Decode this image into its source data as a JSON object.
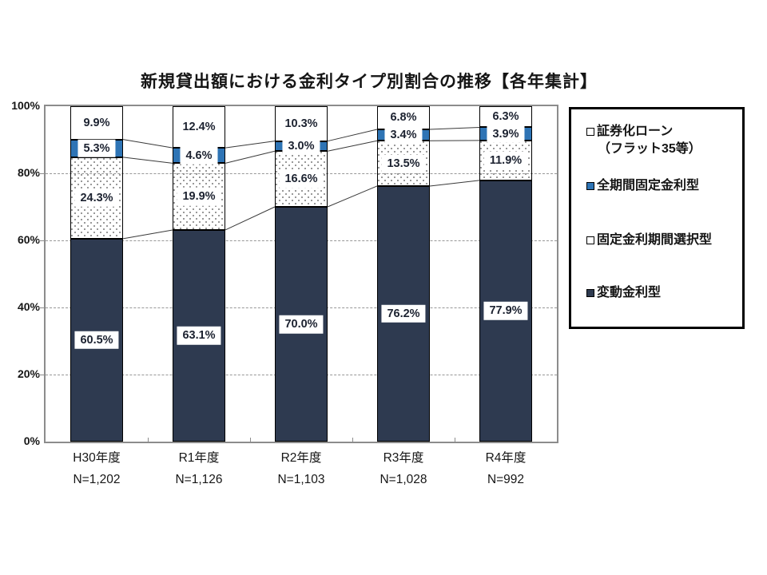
{
  "title": "新規貸出額における金利タイプ別割合の推移【各年集計】",
  "colors": {
    "navy": "#2E3A50",
    "blue": "#2E74B5",
    "white": "#FFFFFF",
    "plot_border": "#8C8C8C",
    "gridline": "#979797",
    "connector": "#3a3a3a",
    "dot_pattern": "#7F7F7F"
  },
  "legend": {
    "items": [
      {
        "name": "securitized-loan",
        "swatch": "white",
        "label_lines": [
          "証券化ローン",
          "（フラット35等）"
        ]
      },
      {
        "name": "full-term-fixed",
        "swatch": "blue",
        "label_lines": [
          "全期間固定金利型"
        ]
      },
      {
        "name": "fixed-period-select",
        "swatch": "white",
        "label_lines": [
          "固定金利期間選択型"
        ]
      },
      {
        "name": "variable-rate",
        "swatch": "navy",
        "label_lines": [
          "変動金利型"
        ]
      }
    ]
  },
  "chart_data": {
    "type": "bar",
    "subtype": "stacked-100-percent-column",
    "title": "新規貸出額における金利タイプ別割合の推移【各年集計】",
    "categories": [
      "H30年度",
      "R1年度",
      "R2年度",
      "R3年度",
      "R4年度"
    ],
    "category_sublabels": [
      "N=1,202",
      "N=1,126",
      "N=1,103",
      "N=1,028",
      "N=992"
    ],
    "series": [
      {
        "name": "変動金利型",
        "style": "navy",
        "label_style": "boxed",
        "values": [
          60.5,
          63.1,
          70.0,
          76.2,
          77.9
        ]
      },
      {
        "name": "固定金利期間選択型",
        "style": "dotted",
        "label_style": "boxed",
        "values": [
          24.3,
          19.9,
          16.6,
          13.5,
          11.9
        ]
      },
      {
        "name": "全期間固定金利型",
        "style": "blue",
        "label_style": "boxed",
        "values": [
          5.3,
          4.6,
          3.0,
          3.4,
          3.9
        ]
      },
      {
        "name": "証券化ローン（フラット35等）",
        "style": "white",
        "label_style": "plain",
        "values": [
          9.9,
          12.4,
          10.3,
          6.8,
          6.3
        ]
      }
    ],
    "value_suffix": "%",
    "ylim": [
      0,
      100
    ],
    "y_ticks": [
      "0%",
      "20%",
      "40%",
      "60%",
      "80%",
      "100%"
    ],
    "gridlines": [
      20,
      40,
      60,
      80
    ],
    "grid": "dashed",
    "legend_position": "right",
    "connector_lines": true
  }
}
